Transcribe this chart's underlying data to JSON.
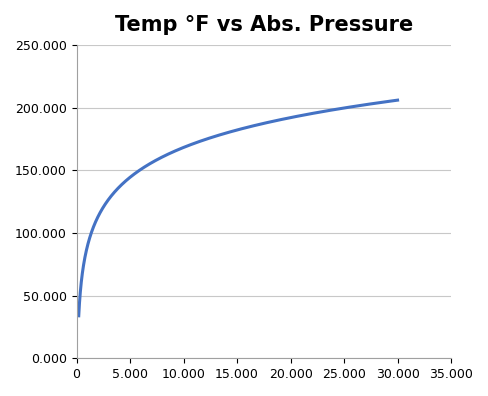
{
  "title": "Temp °F vs Abs. Pressure",
  "line_color": "#4472C4",
  "line_width": 2.2,
  "xlim": [
    0,
    35000
  ],
  "ylim": [
    0,
    250
  ],
  "xticks": [
    0,
    5000,
    10000,
    15000,
    20000,
    25000,
    30000,
    35000
  ],
  "yticks": [
    0,
    50,
    100,
    150,
    200,
    250
  ],
  "grid_color": "#C8C8C8",
  "grid_linewidth": 0.8,
  "background_color": "#FFFFFF",
  "title_fontsize": 15,
  "tick_fontsize": 9,
  "known_x": [
    200,
    500,
    1000,
    2000,
    4000,
    8000,
    12000,
    17000,
    22000,
    27000,
    30000
  ],
  "known_y": [
    33,
    65,
    90,
    120,
    138,
    152,
    168,
    183,
    196,
    206,
    212
  ]
}
